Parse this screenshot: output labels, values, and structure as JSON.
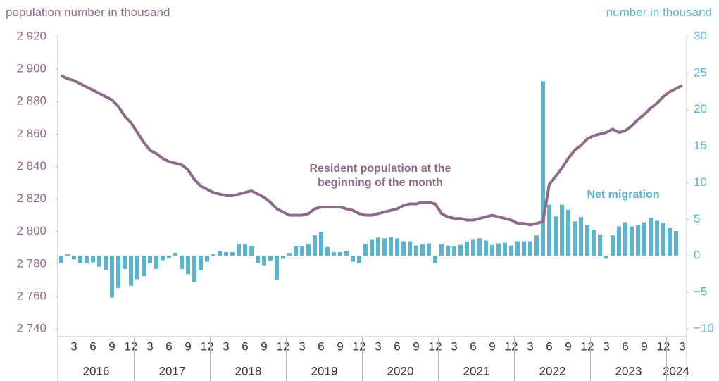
{
  "chart_data": {
    "type": "combo",
    "y_axis_title": "population number in thousand",
    "y2_axis_title": "number in thousand",
    "categories": [
      null,
      null,
      "3",
      null,
      null,
      "6",
      null,
      null,
      "9",
      null,
      null,
      "12",
      null,
      null,
      "3",
      null,
      null,
      "6",
      null,
      null,
      "9",
      null,
      null,
      "12",
      null,
      null,
      "3",
      null,
      null,
      "6",
      null,
      null,
      "9",
      null,
      null,
      "12",
      null,
      null,
      "3",
      null,
      null,
      "6",
      null,
      null,
      "9",
      null,
      null,
      "12",
      null,
      null,
      "3",
      null,
      null,
      "6",
      null,
      null,
      "9",
      null,
      null,
      "12",
      null,
      null,
      "3",
      null,
      null,
      "6",
      null,
      null,
      "9",
      null,
      null,
      "12",
      null,
      null,
      "3",
      null,
      null,
      "6",
      null,
      null,
      "9",
      null,
      null,
      "12",
      null,
      null,
      "3",
      null,
      null,
      "6",
      null,
      null,
      "9",
      null,
      null,
      "12",
      null,
      null,
      "3"
    ],
    "years": [
      "2016",
      "2017",
      "2018",
      "2019",
      "2020",
      "2021",
      "2022",
      "2023",
      "2024"
    ],
    "series": [
      {
        "name": "Net migration",
        "type": "bar",
        "axis": "y2",
        "color": "#5bb4cb",
        "values": [
          -1,
          0.2,
          -0.5,
          -1,
          -1,
          -0.9,
          -1.5,
          -2,
          -5.7,
          -4.4,
          -1.8,
          -4.1,
          -3.2,
          -2.8,
          -1,
          -1.8,
          -0.6,
          -0.3,
          0.4,
          -1.8,
          -2.5,
          -3.6,
          -2,
          -0.8,
          0.2,
          0.7,
          0.5,
          0.5,
          1.6,
          1.6,
          1.3,
          -1,
          -1.3,
          -0.7,
          -3.3,
          -0.4,
          0.4,
          1.3,
          1.3,
          1.6,
          2.8,
          3.3,
          1.2,
          0.5,
          0.5,
          0.7,
          -0.8,
          -1,
          1.6,
          2.2,
          2.5,
          2.4,
          2.6,
          2.4,
          2,
          2,
          1.4,
          1.6,
          1.7,
          -1,
          1.6,
          1.4,
          1.3,
          1.5,
          1.9,
          2.2,
          2.4,
          2.1,
          1.5,
          1.7,
          1.8,
          1.4,
          2,
          2,
          2,
          2.8,
          23.9,
          7,
          5.4,
          7,
          6.3,
          4.7,
          5.3,
          4.2,
          3.6,
          2.9,
          -0.4,
          2.8,
          4,
          4.6,
          4,
          4.2,
          4.6,
          5.2,
          4.8,
          4.5,
          3.8,
          3.4,
          null
        ]
      },
      {
        "name": "Resident population at the beginning of the month",
        "type": "line",
        "color": "#8e6a8a",
        "values": [
          2896,
          2894,
          2893,
          2891,
          2889,
          2887,
          2885,
          2883,
          2881,
          2877,
          2871,
          2867,
          2861,
          2855,
          2850,
          2848,
          2845,
          2843,
          2842,
          2841,
          2838,
          2832,
          2828,
          2826,
          2824,
          2823,
          2822,
          2822,
          2823,
          2824,
          2825,
          2823,
          2821,
          2818,
          2814,
          2812,
          2810,
          2810,
          2810,
          2811,
          2814,
          2815,
          2815,
          2815,
          2815,
          2814,
          2813,
          2811,
          2810,
          2810,
          2811,
          2812,
          2813,
          2814,
          2816,
          2817,
          2817,
          2818,
          2818,
          2817,
          2811,
          2809,
          2808,
          2808,
          2807,
          2807,
          2808,
          2809,
          2810,
          2809,
          2808,
          2807,
          2805,
          2805,
          2804,
          2805,
          2806,
          2829,
          2834,
          2839,
          2845,
          2850,
          2853,
          2857,
          2859,
          2860,
          2861,
          2863,
          2861,
          2862,
          2865,
          2869,
          2872,
          2876,
          2879,
          2883,
          2886,
          2888,
          2890
        ]
      }
    ],
    "ylim": [
      2740,
      2920
    ],
    "yticks": [
      {
        "value": 2740,
        "label": "2 740"
      },
      {
        "value": 2760,
        "label": "2 760"
      },
      {
        "value": 2780,
        "label": "2 780"
      },
      {
        "value": 2800,
        "label": "2 800"
      },
      {
        "value": 2820,
        "label": "2 820"
      },
      {
        "value": 2840,
        "label": "2 840"
      },
      {
        "value": 2860,
        "label": "2 860"
      },
      {
        "value": 2880,
        "label": "2 880"
      },
      {
        "value": 2900,
        "label": "2 900"
      },
      {
        "value": 2920,
        "label": "2 920"
      }
    ],
    "y2lim": [
      -10,
      30
    ],
    "y2ticks": [
      {
        "value": -10,
        "label": "−10"
      },
      {
        "value": -5,
        "label": "−5"
      },
      0,
      5,
      10,
      15,
      20,
      25,
      30
    ],
    "grid": false
  }
}
